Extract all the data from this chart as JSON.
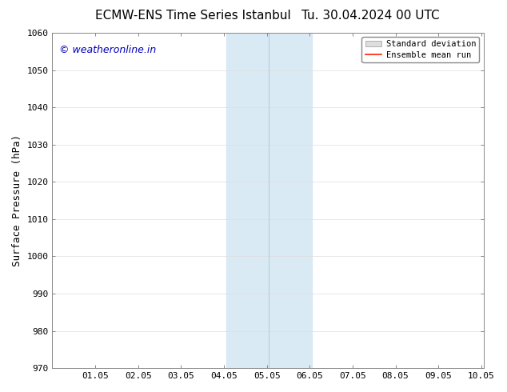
{
  "title_left": "ECMW-ENS Time Series Istanbul",
  "title_right": "Tu. 30.04.2024 00 UTC",
  "ylabel": "Surface Pressure (hPa)",
  "xlabel": "",
  "xlim": [
    0.0,
    10.05
  ],
  "ylim": [
    970,
    1060
  ],
  "yticks": [
    970,
    980,
    990,
    1000,
    1010,
    1020,
    1030,
    1040,
    1050,
    1060
  ],
  "xtick_labels": [
    "",
    "01.05",
    "02.05",
    "03.05",
    "04.05",
    "05.05",
    "06.05",
    "07.05",
    "08.05",
    "09.05",
    "10.05"
  ],
  "xtick_positions": [
    0.0,
    1.0,
    2.0,
    3.0,
    4.0,
    5.0,
    6.0,
    7.0,
    8.0,
    9.0,
    10.0
  ],
  "shaded_region_x1": 4.05,
  "shaded_region_x2": 6.05,
  "shaded_region_color": "#daeaf5",
  "divider_line_x": 5.05,
  "divider_line_color": "#aaccdd",
  "watermark_text": "© weatheronline.in",
  "watermark_color": "#0000bb",
  "watermark_fontsize": 9,
  "legend_std_dev_label": "Standard deviation",
  "legend_mean_run_label": "Ensemble mean run",
  "legend_std_dev_color": "#dddddd",
  "legend_mean_run_color": "#ff2200",
  "bg_color": "#ffffff",
  "plot_bg_color": "#ffffff",
  "title_fontsize": 11,
  "tick_fontsize": 8,
  "ylabel_fontsize": 9,
  "grid_color": "#dddddd",
  "spine_color": "#888888"
}
